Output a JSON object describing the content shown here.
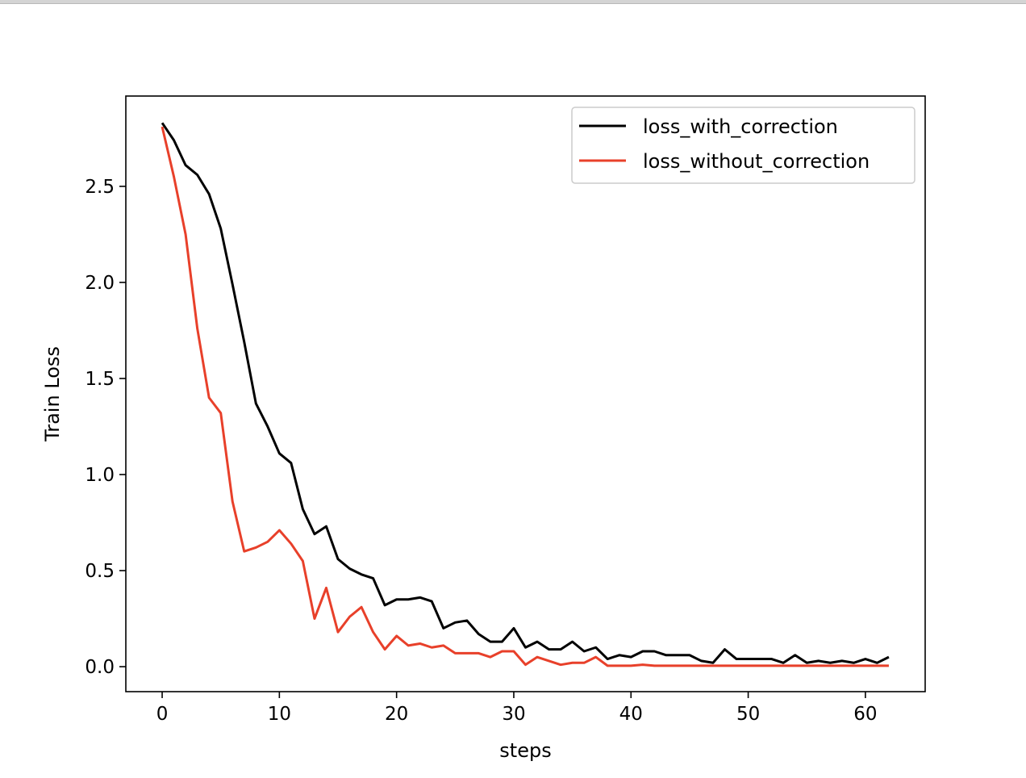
{
  "chart_data": {
    "type": "line",
    "title": "",
    "xlabel": "steps",
    "ylabel": "Train Loss",
    "xlim": [
      -3.1,
      65.1
    ],
    "ylim": [
      -0.13,
      2.97
    ],
    "xticks": [
      0,
      10,
      20,
      30,
      40,
      50,
      60
    ],
    "yticks": [
      0.0,
      0.5,
      1.0,
      1.5,
      2.0,
      2.5
    ],
    "xtick_labels": [
      "0",
      "10",
      "20",
      "30",
      "40",
      "50",
      "60"
    ],
    "ytick_labels": [
      "0.0",
      "0.5",
      "1.0",
      "1.5",
      "2.0",
      "2.5"
    ],
    "grid": false,
    "legend_position": "top-right",
    "x": [
      0,
      1,
      2,
      3,
      4,
      5,
      6,
      7,
      8,
      9,
      10,
      11,
      12,
      13,
      14,
      15,
      16,
      17,
      18,
      19,
      20,
      21,
      22,
      23,
      24,
      25,
      26,
      27,
      28,
      29,
      30,
      31,
      32,
      33,
      34,
      35,
      36,
      37,
      38,
      39,
      40,
      41,
      42,
      43,
      44,
      45,
      46,
      47,
      48,
      49,
      50,
      51,
      52,
      53,
      54,
      55,
      56,
      57,
      58,
      59,
      60,
      61,
      62
    ],
    "series": [
      {
        "name": "loss_with_correction",
        "color": "#000000",
        "values": [
          2.83,
          2.74,
          2.61,
          2.56,
          2.46,
          2.28,
          1.99,
          1.69,
          1.37,
          1.25,
          1.11,
          1.06,
          0.82,
          0.69,
          0.73,
          0.56,
          0.51,
          0.48,
          0.46,
          0.32,
          0.35,
          0.35,
          0.36,
          0.34,
          0.2,
          0.23,
          0.24,
          0.17,
          0.13,
          0.13,
          0.2,
          0.1,
          0.13,
          0.09,
          0.09,
          0.13,
          0.08,
          0.1,
          0.04,
          0.06,
          0.05,
          0.08,
          0.08,
          0.06,
          0.06,
          0.06,
          0.03,
          0.02,
          0.09,
          0.04,
          0.04,
          0.04,
          0.04,
          0.02,
          0.06,
          0.02,
          0.03,
          0.02,
          0.03,
          0.02,
          0.04,
          0.02,
          0.05
        ]
      },
      {
        "name": "loss_without_correction",
        "color": "#e8402a",
        "values": [
          2.81,
          2.55,
          2.25,
          1.76,
          1.4,
          1.32,
          0.86,
          0.6,
          0.62,
          0.65,
          0.71,
          0.64,
          0.55,
          0.25,
          0.41,
          0.18,
          0.26,
          0.31,
          0.18,
          0.09,
          0.16,
          0.11,
          0.12,
          0.1,
          0.11,
          0.07,
          0.07,
          0.07,
          0.05,
          0.08,
          0.08,
          0.01,
          0.05,
          0.03,
          0.01,
          0.02,
          0.02,
          0.05,
          0.005,
          0.005,
          0.005,
          0.01,
          0.005,
          0.005,
          0.005,
          0.005,
          0.005,
          0.005,
          0.005,
          0.005,
          0.005,
          0.005,
          0.005,
          0.005,
          0.005,
          0.005,
          0.005,
          0.005,
          0.005,
          0.005,
          0.005,
          0.005,
          0.005
        ]
      }
    ]
  }
}
